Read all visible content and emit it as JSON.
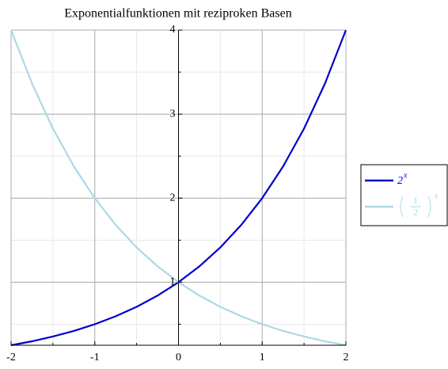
{
  "chart_data": {
    "type": "line",
    "title": "Exponentialfunktionen mit reziproken Basen",
    "x": [
      -2,
      -1.75,
      -1.5,
      -1.25,
      -1,
      -0.75,
      -0.5,
      -0.25,
      0,
      0.25,
      0.5,
      0.75,
      1,
      1.25,
      1.5,
      1.75,
      2
    ],
    "series": [
      {
        "label": {
          "base": "2",
          "exponent": "x"
        },
        "color": "#0000cd",
        "values": [
          0.25,
          0.297,
          0.354,
          0.42,
          0.5,
          0.595,
          0.707,
          0.841,
          1,
          1.189,
          1.414,
          1.682,
          2,
          2.378,
          2.828,
          3.364,
          4
        ]
      },
      {
        "label": {
          "numerator": "1",
          "denominator": "2",
          "exponent": "x"
        },
        "color": "#add8e6",
        "values": [
          4,
          3.364,
          2.828,
          2.378,
          2,
          1.682,
          1.414,
          1.189,
          1,
          0.841,
          0.707,
          0.595,
          0.5,
          0.42,
          0.354,
          0.297,
          0.25
        ]
      }
    ],
    "xlim": [
      -2,
      2
    ],
    "ylim": [
      0.25,
      4
    ],
    "xticks": [
      -2,
      -1,
      0,
      1,
      2
    ],
    "yticks": [
      1,
      2,
      3,
      4
    ],
    "xminor": [
      -1.5,
      -0.5,
      0.5,
      1.5
    ],
    "yminor": [
      0.5,
      1.5,
      2.5,
      3.5
    ],
    "grid": true
  }
}
